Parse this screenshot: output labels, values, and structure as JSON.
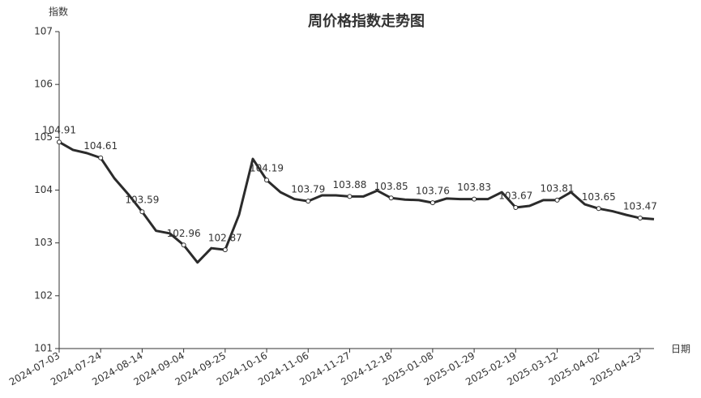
{
  "chart_data": {
    "type": "line",
    "title": "周价格指数走势图",
    "y_label": "指数",
    "x_label": "日期",
    "categories": [
      "2024-07-03",
      null,
      null,
      "2024-07-24",
      null,
      null,
      "2024-08-14",
      null,
      null,
      "2024-09-04",
      null,
      null,
      "2024-09-25",
      null,
      null,
      "2024-10-16",
      null,
      null,
      "2024-11-06",
      null,
      null,
      "2024-11-27",
      null,
      null,
      "2024-12-18",
      null,
      null,
      "2025-01-08",
      null,
      null,
      "2025-01-29",
      null,
      null,
      "2025-02-19",
      null,
      null,
      "2025-03-12",
      null,
      null,
      "2025-04-02",
      null,
      null,
      "2025-04-23",
      null
    ],
    "values": [
      104.91,
      104.76,
      104.7,
      104.61,
      104.22,
      103.92,
      103.59,
      103.23,
      103.18,
      102.96,
      102.63,
      102.9,
      102.87,
      103.53,
      104.59,
      104.19,
      103.96,
      103.83,
      103.79,
      103.9,
      103.9,
      103.88,
      103.88,
      103.99,
      103.85,
      103.82,
      103.81,
      103.76,
      103.84,
      103.83,
      103.83,
      103.83,
      103.96,
      103.67,
      103.7,
      103.81,
      103.81,
      103.96,
      103.73,
      103.65,
      103.6,
      103.53,
      103.47,
      103.45
    ],
    "color": "#2b2b2b",
    "ylim": [
      101,
      107
    ],
    "yticks": [
      101,
      102,
      103,
      104,
      105,
      106,
      107
    ],
    "grid": false
  }
}
